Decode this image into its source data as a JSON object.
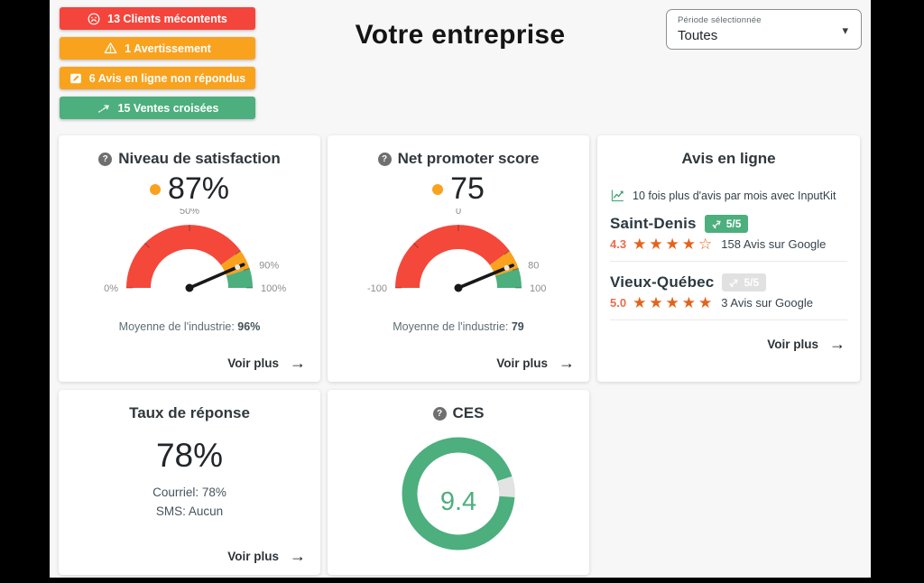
{
  "colors": {
    "red": "#f4453c",
    "orange": "#f9a21e",
    "green": "#4caf7d",
    "star_orange": "#e2631b",
    "rating_orange": "#ea6d4a",
    "page_bg": "#000000",
    "content_bg": "#f7f7f8"
  },
  "header": {
    "title": "Votre entreprise",
    "alerts": [
      {
        "icon": "frown-icon",
        "label": "13 Clients mécontents",
        "color": "#f4453c"
      },
      {
        "icon": "warning-icon",
        "label": "1 Avertissement",
        "color": "#f9a21e"
      },
      {
        "icon": "review-icon",
        "label": "6 Avis en ligne non répondus",
        "color": "#f9a21e"
      },
      {
        "icon": "cross-sell-icon",
        "label": "15 Ventes croisées",
        "color": "#4caf7d"
      }
    ],
    "period_select": {
      "label": "Période sélectionnée",
      "value": "Toutes"
    }
  },
  "cards": {
    "satisfaction": {
      "title": "Niveau de satisfaction",
      "value": "87%",
      "average_label": "Moyenne de l'industrie:",
      "average_value": "96%",
      "link": "Voir plus"
    },
    "nps": {
      "title": "Net promoter score",
      "value": "75",
      "average_label": "Moyenne de l'industrie:",
      "average_value": "79",
      "link": "Voir plus"
    },
    "reviews": {
      "title": "Avis en ligne",
      "promo": "10 fois plus d'avis par mois avec InputKit",
      "locations": [
        {
          "name": "Saint-Denis",
          "badge": "5/5",
          "rating": "4.3",
          "stars": "★★★★☆",
          "count": "158 Avis sur Google"
        },
        {
          "name": "Vieux-Québec",
          "badge": "5/5",
          "rating": "5.0",
          "stars": "★★★★★",
          "count": "3 Avis sur Google"
        }
      ],
      "link": "Voir plus"
    },
    "response_rate": {
      "title": "Taux de réponse",
      "value": "78%",
      "line1": "Courriel: 78%",
      "line2": "SMS: Aucun",
      "link": "Voir plus"
    },
    "ces": {
      "title": "CES"
    }
  },
  "chart_data": [
    {
      "id": "satisfaction-gauge",
      "type": "gauge",
      "min": 0,
      "max": 100,
      "value": 87,
      "zones": [
        {
          "from": 0,
          "to": 80,
          "color": "#f4483b"
        },
        {
          "from": 80,
          "to": 90,
          "color": "#f9a21e"
        },
        {
          "from": 90,
          "to": 100,
          "color": "#4caf7d"
        }
      ],
      "ticks": [
        {
          "value": 0,
          "label": "0%"
        },
        {
          "value": 25,
          "label": ""
        },
        {
          "value": 50,
          "label": "50%"
        },
        {
          "value": 80,
          "label": ""
        },
        {
          "value": 90,
          "label": "90%"
        },
        {
          "value": 100,
          "label": "100%"
        }
      ],
      "industry_average": 96
    },
    {
      "id": "nps-gauge",
      "type": "gauge",
      "min": -100,
      "max": 100,
      "value": 75,
      "zones": [
        {
          "from": -100,
          "to": 60,
          "color": "#f4483b"
        },
        {
          "from": 60,
          "to": 80,
          "color": "#f9a21e"
        },
        {
          "from": 80,
          "to": 100,
          "color": "#4caf7d"
        }
      ],
      "ticks": [
        {
          "value": -100,
          "label": "-100"
        },
        {
          "value": -50,
          "label": ""
        },
        {
          "value": 0,
          "label": "0"
        },
        {
          "value": 60,
          "label": ""
        },
        {
          "value": 80,
          "label": "80"
        },
        {
          "value": 100,
          "label": "100"
        }
      ],
      "industry_average": 79
    },
    {
      "id": "ces-donut",
      "type": "donut",
      "value": 9.4,
      "max": 10,
      "color": "#4caf7d",
      "rest_color": "#e3e3e3",
      "gap_start_deg": 72,
      "center_label": "9.4"
    }
  ]
}
